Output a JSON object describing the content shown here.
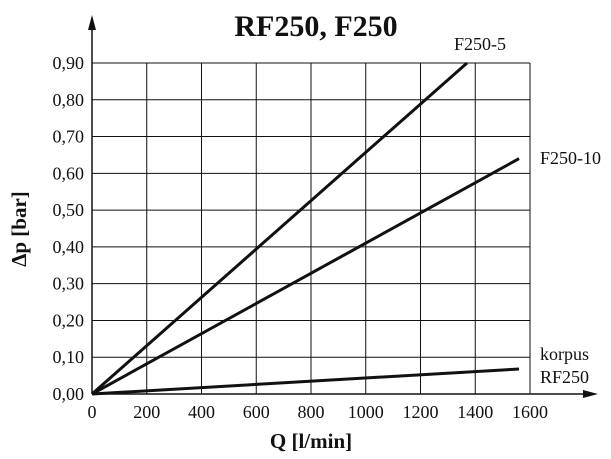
{
  "chart_data": {
    "type": "line",
    "title": "RF250, F250",
    "xlabel": "Q [l/min]",
    "ylabel": "Δp [bar]",
    "xlim": [
      0,
      1600
    ],
    "ylim": [
      0,
      0.9
    ],
    "x_ticks": [
      "0",
      "200",
      "400",
      "600",
      "800",
      "1000",
      "1200",
      "1400",
      "1600"
    ],
    "y_ticks": [
      "0,00",
      "0,10",
      "0,20",
      "0,30",
      "0,40",
      "0,50",
      "0,60",
      "0,70",
      "0,80",
      "0,90"
    ],
    "grid": true,
    "series": [
      {
        "label": [
          "F250-5"
        ],
        "x": [
          0,
          1370
        ],
        "y": [
          0,
          0.9
        ]
      },
      {
        "label": [
          "F250-10"
        ],
        "x": [
          0,
          1560
        ],
        "y": [
          0,
          0.64
        ]
      },
      {
        "label": [
          "korpus",
          "RF250"
        ],
        "x": [
          0,
          1560
        ],
        "y": [
          0,
          0.068
        ]
      }
    ]
  }
}
